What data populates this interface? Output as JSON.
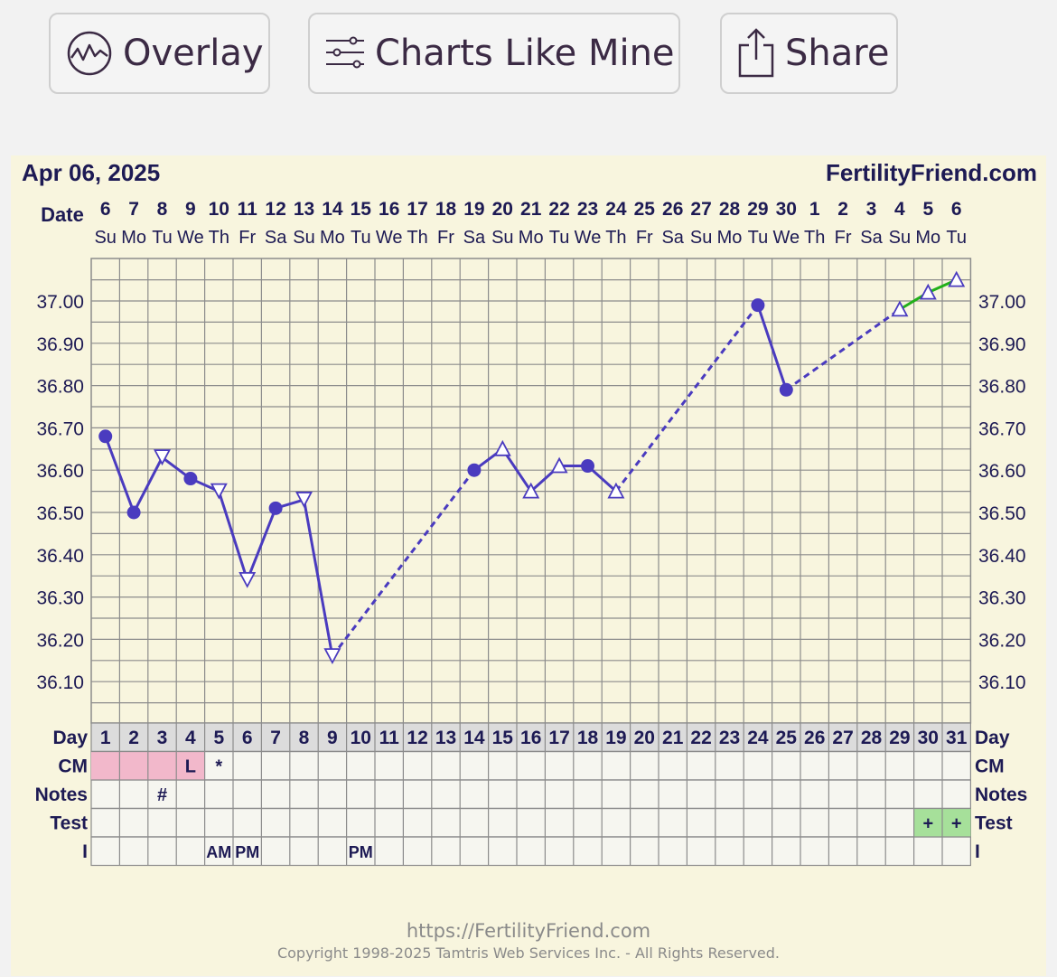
{
  "toolbar": {
    "overlay_label": "Overlay",
    "charts_like_mine_label": "Charts Like Mine",
    "share_label": "Share"
  },
  "header": {
    "chart_date": "Apr 06, 2025",
    "site": "FertilityFriend.com",
    "date_label": "Date"
  },
  "footer": {
    "url": "https://FertilityFriend.com",
    "copyright": "Copyright 1998-2025 Tamtris Web Services Inc. - All Rights Reserved."
  },
  "rows": {
    "day_label": "Day",
    "cm_label": "CM",
    "notes_label": "Notes",
    "test_label": "Test",
    "i_label": "I"
  },
  "colors": {
    "background": "#f8f5de",
    "grid": "#8c8c8c",
    "line": "#4a3bbf",
    "recent_line": "#22b01a",
    "label_text": "#1d1a54",
    "menses_cell": "#f2b8cb",
    "positive_test_cell": "#a6e09a"
  },
  "chart_data": {
    "type": "line",
    "title": "",
    "ylabel": "",
    "ylim": [
      36.0,
      37.1
    ],
    "yticks": [
      37.0,
      36.9,
      36.8,
      36.7,
      36.6,
      36.5,
      36.4,
      36.3,
      36.2,
      36.1
    ],
    "ytick_labels": [
      "37.00",
      "36.90",
      "36.80",
      "36.70",
      "36.60",
      "36.50",
      "36.40",
      "36.30",
      "36.20",
      "36.10"
    ],
    "grid": true,
    "cycle_days": [
      1,
      2,
      3,
      4,
      5,
      6,
      7,
      8,
      9,
      10,
      11,
      12,
      13,
      14,
      15,
      16,
      17,
      18,
      19,
      20,
      21,
      22,
      23,
      24,
      25,
      26,
      27,
      28,
      29,
      30,
      31
    ],
    "dates": [
      "6",
      "7",
      "8",
      "9",
      "10",
      "11",
      "12",
      "13",
      "14",
      "15",
      "16",
      "17",
      "18",
      "19",
      "20",
      "21",
      "22",
      "23",
      "24",
      "25",
      "26",
      "27",
      "28",
      "29",
      "30",
      "1",
      "2",
      "3",
      "4",
      "5",
      "6"
    ],
    "weekdays": [
      "Su",
      "Mo",
      "Tu",
      "We",
      "Th",
      "Fr",
      "Sa",
      "Su",
      "Mo",
      "Tu",
      "We",
      "Th",
      "Fr",
      "Sa",
      "Su",
      "Mo",
      "Tu",
      "We",
      "Th",
      "Fr",
      "Sa",
      "Su",
      "Mo",
      "Tu",
      "We",
      "Th",
      "Fr",
      "Sa",
      "Su",
      "Mo",
      "Tu"
    ],
    "temperatures": [
      {
        "day": 1,
        "temp": 36.68,
        "marker": "dot"
      },
      {
        "day": 2,
        "temp": 36.5,
        "marker": "dot"
      },
      {
        "day": 3,
        "temp": 36.63,
        "marker": "triangle-down"
      },
      {
        "day": 4,
        "temp": 36.58,
        "marker": "dot"
      },
      {
        "day": 5,
        "temp": 36.55,
        "marker": "triangle-down"
      },
      {
        "day": 6,
        "temp": 36.34,
        "marker": "triangle-down"
      },
      {
        "day": 7,
        "temp": 36.51,
        "marker": "dot"
      },
      {
        "day": 8,
        "temp": 36.53,
        "marker": "triangle-down"
      },
      {
        "day": 9,
        "temp": 36.16,
        "marker": "triangle-down"
      },
      {
        "day": 14,
        "temp": 36.6,
        "marker": "dot"
      },
      {
        "day": 15,
        "temp": 36.65,
        "marker": "triangle-up"
      },
      {
        "day": 16,
        "temp": 36.55,
        "marker": "triangle-up"
      },
      {
        "day": 17,
        "temp": 36.61,
        "marker": "triangle-up"
      },
      {
        "day": 18,
        "temp": 36.61,
        "marker": "dot"
      },
      {
        "day": 19,
        "temp": 36.55,
        "marker": "triangle-up"
      },
      {
        "day": 24,
        "temp": 36.99,
        "marker": "dot"
      },
      {
        "day": 25,
        "temp": 36.79,
        "marker": "dot"
      },
      {
        "day": 29,
        "temp": 36.98,
        "marker": "triangle-up"
      },
      {
        "day": 30,
        "temp": 37.02,
        "marker": "triangle-up"
      },
      {
        "day": 31,
        "temp": 37.05,
        "marker": "triangle-up"
      }
    ],
    "segments": [
      {
        "from": 1,
        "to": 9,
        "style": "solid",
        "color_key": "line"
      },
      {
        "from": 9,
        "to": 14,
        "style": "dashed",
        "color_key": "line"
      },
      {
        "from": 14,
        "to": 19,
        "style": "solid",
        "color_key": "line"
      },
      {
        "from": 19,
        "to": 24,
        "style": "dashed",
        "color_key": "line"
      },
      {
        "from": 24,
        "to": 25,
        "style": "solid",
        "color_key": "line"
      },
      {
        "from": 25,
        "to": 29,
        "style": "dashed",
        "color_key": "line"
      },
      {
        "from": 29,
        "to": 31,
        "style": "solid",
        "color_key": "recent_line"
      }
    ],
    "cm_row": [
      {
        "day": 1,
        "fill": "menses",
        "text": ""
      },
      {
        "day": 2,
        "fill": "menses",
        "text": ""
      },
      {
        "day": 3,
        "fill": "menses",
        "text": ""
      },
      {
        "day": 4,
        "fill": "menses",
        "text": "L"
      },
      {
        "day": 5,
        "fill": "",
        "text": "*"
      }
    ],
    "notes_row": [
      {
        "day": 3,
        "text": "#"
      }
    ],
    "test_row": [
      {
        "day": 30,
        "fill": "positive",
        "text": "+"
      },
      {
        "day": 31,
        "fill": "positive",
        "text": "+"
      }
    ],
    "i_row": [
      {
        "day": 5,
        "text": "AM"
      },
      {
        "day": 6,
        "text": "PM"
      },
      {
        "day": 10,
        "text": "PM"
      }
    ]
  }
}
